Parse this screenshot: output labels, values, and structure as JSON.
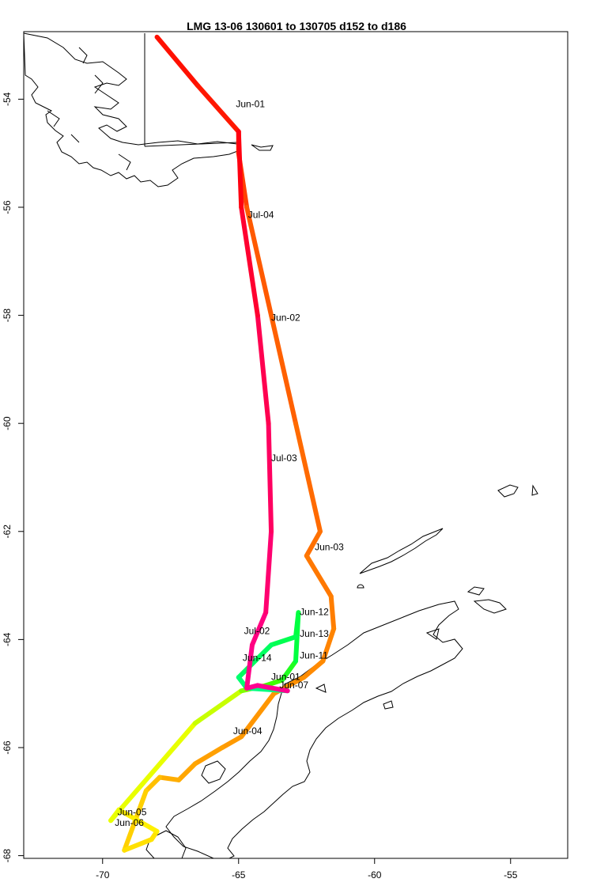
{
  "title": "LMG   13-06    130601 to 130705    d152 to d186",
  "chart_data": {
    "type": "map-track",
    "title": "LMG   13-06    130601 to 130705    d152 to d186",
    "xlim": [
      -72.9,
      -52.9
    ],
    "ylim": [
      -68.05,
      -52.75
    ],
    "x_ticks": [
      -70,
      -65,
      -60,
      -55
    ],
    "y_ticks": [
      -54,
      -56,
      -58,
      -60,
      -62,
      -64,
      -66,
      -68
    ],
    "track_color_order": [
      "#ff0000",
      "#ff7000",
      "#ffe600",
      "#00ff40",
      "#ff0090"
    ],
    "track": [
      {
        "lon": -68.0,
        "lat": -52.85,
        "color": "#ff0000"
      },
      {
        "lon": -66.5,
        "lat": -53.75,
        "color": "#ff1000"
      },
      {
        "lon": -65.0,
        "lat": -54.6,
        "color": "#ff1800"
      },
      {
        "lon": -65.0,
        "lat": -55.0,
        "color": "#ff2a00"
      },
      {
        "lon": -64.7,
        "lat": -56.0,
        "color": "#ff4000"
      },
      {
        "lon": -63.8,
        "lat": -58.0,
        "color": "#ff5a00"
      },
      {
        "lon": -62.9,
        "lat": -60.0,
        "color": "#ff6000"
      },
      {
        "lon": -62.0,
        "lat": -62.0,
        "color": "#ff6a00"
      },
      {
        "lon": -62.5,
        "lat": -62.45,
        "color": "#ff7000"
      },
      {
        "lon": -61.6,
        "lat": -63.2,
        "color": "#ff7800"
      },
      {
        "lon": -61.5,
        "lat": -63.8,
        "color": "#ff7e00"
      },
      {
        "lon": -61.9,
        "lat": -64.4,
        "color": "#ff8400"
      },
      {
        "lon": -62.6,
        "lat": -64.7,
        "color": "#ff8a00"
      },
      {
        "lon": -63.7,
        "lat": -65.0,
        "color": "#ff9000"
      },
      {
        "lon": -64.9,
        "lat": -65.8,
        "color": "#ff9600"
      },
      {
        "lon": -65.6,
        "lat": -66.0,
        "color": "#ff9a00"
      },
      {
        "lon": -66.6,
        "lat": -66.3,
        "color": "#ffa000"
      },
      {
        "lon": -67.2,
        "lat": -66.6,
        "color": "#ffa600"
      },
      {
        "lon": -67.9,
        "lat": -66.55,
        "color": "#ffae00"
      },
      {
        "lon": -68.4,
        "lat": -66.8,
        "color": "#ffc000"
      },
      {
        "lon": -69.2,
        "lat": -67.9,
        "color": "#ffd000"
      },
      {
        "lon": -68.2,
        "lat": -67.7,
        "color": "#ffe000"
      },
      {
        "lon": -68.0,
        "lat": -67.55,
        "color": "#ffe400"
      },
      {
        "lon": -69.4,
        "lat": -67.15,
        "color": "#fff000"
      },
      {
        "lon": -69.7,
        "lat": -67.35,
        "color": "#f8ff00"
      },
      {
        "lon": -66.6,
        "lat": -65.55,
        "color": "#e8ff00"
      },
      {
        "lon": -64.9,
        "lat": -64.95,
        "color": "#c8ff00"
      },
      {
        "lon": -64.0,
        "lat": -64.85,
        "color": "#80ff00"
      },
      {
        "lon": -63.4,
        "lat": -64.75,
        "color": "#40ff00"
      },
      {
        "lon": -62.9,
        "lat": -64.4,
        "color": "#20ff20"
      },
      {
        "lon": -62.8,
        "lat": -63.5,
        "color": "#00ff40"
      },
      {
        "lon": -62.9,
        "lat": -63.95,
        "color": "#00ff40"
      },
      {
        "lon": -63.8,
        "lat": -64.1,
        "color": "#00ff50"
      },
      {
        "lon": -65.0,
        "lat": -64.7,
        "color": "#00ff60"
      },
      {
        "lon": -64.7,
        "lat": -64.9,
        "color": "#00ff70"
      },
      {
        "lon": -63.2,
        "lat": -64.95,
        "color": "#00ff80"
      },
      {
        "lon": -64.3,
        "lat": -64.85,
        "color": "#ff0090"
      },
      {
        "lon": -64.7,
        "lat": -64.9,
        "color": "#ff0090"
      },
      {
        "lon": -64.5,
        "lat": -64.1,
        "color": "#ff0088"
      },
      {
        "lon": -64.0,
        "lat": -63.5,
        "color": "#ff0080"
      },
      {
        "lon": -63.8,
        "lat": -62.0,
        "color": "#ff0070"
      },
      {
        "lon": -63.9,
        "lat": -60.0,
        "color": "#ff0060"
      },
      {
        "lon": -64.3,
        "lat": -58.0,
        "color": "#ff0050"
      },
      {
        "lon": -64.9,
        "lat": -56.0,
        "color": "#ff0030"
      },
      {
        "lon": -65.0,
        "lat": -54.6,
        "color": "#ff0010"
      }
    ],
    "date_labels": [
      {
        "text": "Jun-01",
        "lon": -65.1,
        "lat": -54.15
      },
      {
        "text": "Jul-04",
        "lon": -64.65,
        "lat": -56.2
      },
      {
        "text": "Jun-02",
        "lon": -63.8,
        "lat": -58.1
      },
      {
        "text": "Jul-03",
        "lon": -63.8,
        "lat": -60.7
      },
      {
        "text": "Jun-03",
        "lon": -62.2,
        "lat": -62.35
      },
      {
        "text": "Jun-12",
        "lon": -62.75,
        "lat": -63.55
      },
      {
        "text": "Jul-02",
        "lon": -64.8,
        "lat": -63.9
      },
      {
        "text": "Jun-13",
        "lon": -62.75,
        "lat": -63.95
      },
      {
        "text": "Jun-11",
        "lon": -62.75,
        "lat": -64.35
      },
      {
        "text": "Jun-14",
        "lon": -64.85,
        "lat": -64.4
      },
      {
        "text": "Jun-01",
        "lon": -63.8,
        "lat": -64.75
      },
      {
        "text": "Jun-07",
        "lon": -63.5,
        "lat": -64.9
      },
      {
        "text": "Jun-04",
        "lon": -65.2,
        "lat": -65.75
      },
      {
        "text": "Jun-05",
        "lon": -69.45,
        "lat": -67.25
      },
      {
        "text": "Jun-06",
        "lon": -69.55,
        "lat": -67.45
      }
    ]
  }
}
